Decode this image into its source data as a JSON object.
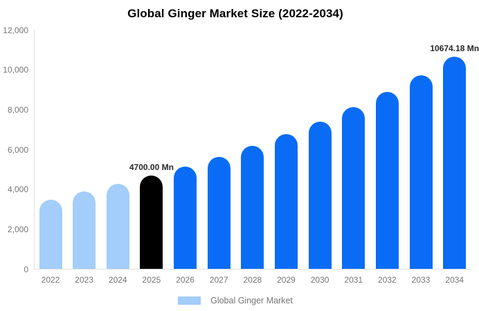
{
  "chart": {
    "title": "Global Ginger Market Size (2022-2034)",
    "legend": {
      "label": "Global Ginger Market"
    }
  },
  "chart_data": {
    "type": "bar",
    "title": "Global Ginger Market Size (2022-2034)",
    "xlabel": "",
    "ylabel": "",
    "unit": "Mn",
    "categories": [
      "2022",
      "2023",
      "2024",
      "2025",
      "2026",
      "2027",
      "2028",
      "2029",
      "2030",
      "2031",
      "2032",
      "2033",
      "2034"
    ],
    "values": [
      3500,
      3900,
      4290,
      4700.0,
      5148,
      5640,
      6178,
      6767,
      7413,
      8120,
      8895,
      9744,
      10674.18
    ],
    "ylim": [
      0,
      12000
    ],
    "ytick_step": 2000,
    "ytick_labels": [
      "0",
      "2,000",
      "4,000",
      "6,000",
      "8,000",
      "10,000",
      "12,000"
    ],
    "grid": false,
    "legend_position": "bottom",
    "legend_entries": [
      "Global Ginger Market"
    ],
    "annotations": [
      {
        "category": "2025",
        "text": "4700.00 Mn"
      },
      {
        "category": "2034",
        "text": "10674.18 Mn"
      }
    ],
    "bar_color_roles": [
      "historical",
      "historical",
      "historical",
      "base_year",
      "forecast",
      "forecast",
      "forecast",
      "forecast",
      "forecast",
      "forecast",
      "forecast",
      "forecast",
      "forecast"
    ],
    "colors": {
      "historical": "#a3cdfa",
      "base_year": "#000000",
      "forecast": "#0a6cf5",
      "legend_swatch": "#a3cdfa",
      "axis_line": "#e0e0e0",
      "axis_text": "#757575",
      "annotation_text": "#262626",
      "title_text": "#000000"
    }
  }
}
